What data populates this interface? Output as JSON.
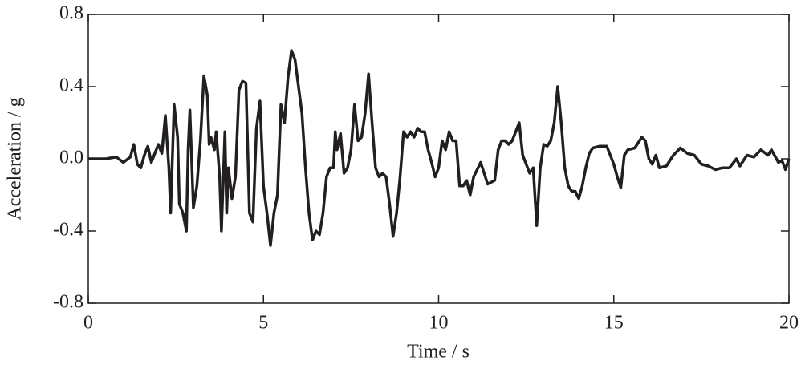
{
  "chart_data": {
    "type": "line",
    "xlabel": "Time / s",
    "ylabel": "Acceleration / g",
    "xlim": [
      0,
      20
    ],
    "xticks": [
      0,
      5,
      10,
      15,
      20
    ],
    "ylim": [
      -0.8,
      0.8
    ],
    "yticks": [
      0.8,
      0.4,
      {
        "value": 0,
        "label": "0.0"
      },
      -0.4,
      -0.8
    ],
    "grid": false,
    "x": [
      0,
      0.5,
      0.8,
      1.0,
      1.2,
      1.3,
      1.4,
      1.5,
      1.6,
      1.7,
      1.8,
      1.9,
      2.0,
      2.1,
      2.2,
      2.3,
      2.35,
      2.45,
      2.55,
      2.6,
      2.7,
      2.8,
      2.85,
      2.9,
      3.0,
      3.1,
      3.2,
      3.3,
      3.4,
      3.45,
      3.5,
      3.6,
      3.65,
      3.75,
      3.8,
      3.9,
      3.95,
      4.0,
      4.1,
      4.2,
      4.3,
      4.4,
      4.5,
      4.6,
      4.7,
      4.8,
      4.9,
      5.0,
      5.1,
      5.2,
      5.3,
      5.4,
      5.5,
      5.6,
      5.7,
      5.8,
      5.9,
      6.0,
      6.1,
      6.2,
      6.3,
      6.4,
      6.5,
      6.6,
      6.7,
      6.8,
      6.9,
      7.0,
      7.05,
      7.1,
      7.2,
      7.3,
      7.4,
      7.5,
      7.6,
      7.7,
      7.8,
      7.9,
      8.0,
      8.1,
      8.2,
      8.3,
      8.4,
      8.5,
      8.6,
      8.7,
      8.8,
      8.9,
      9.0,
      9.1,
      9.2,
      9.3,
      9.4,
      9.5,
      9.6,
      9.7,
      9.8,
      9.9,
      10.0,
      10.1,
      10.2,
      10.3,
      10.4,
      10.5,
      10.6,
      10.7,
      10.8,
      10.9,
      11.0,
      11.2,
      11.3,
      11.4,
      11.6,
      11.7,
      11.8,
      11.9,
      12.0,
      12.1,
      12.2,
      12.3,
      12.4,
      12.5,
      12.6,
      12.7,
      12.8,
      12.9,
      13.0,
      13.1,
      13.2,
      13.3,
      13.4,
      13.5,
      13.6,
      13.7,
      13.8,
      13.9,
      14.0,
      14.1,
      14.2,
      14.3,
      14.4,
      14.6,
      14.8,
      14.9,
      15.0,
      15.1,
      15.2,
      15.3,
      15.4,
      15.6,
      15.8,
      15.9,
      16.0,
      16.1,
      16.2,
      16.3,
      16.5,
      16.7,
      16.9,
      17.1,
      17.3,
      17.5,
      17.7,
      17.9,
      18.1,
      18.3,
      18.5,
      18.6,
      18.8,
      19.0,
      19.2,
      19.4,
      19.5,
      19.7,
      19.8,
      19.9,
      20.0
    ],
    "series": [
      {
        "color": "#231f20",
        "values": [
          0,
          0,
          0.01,
          -0.02,
          0.01,
          0.08,
          -0.03,
          -0.05,
          0.02,
          0.07,
          -0.02,
          0.03,
          0.08,
          0.03,
          0.24,
          -0.05,
          -0.3,
          0.3,
          0.12,
          -0.25,
          -0.3,
          -0.4,
          0.05,
          0.27,
          -0.27,
          -0.15,
          0.1,
          0.46,
          0.35,
          0.08,
          0.12,
          0.05,
          0.15,
          -0.1,
          -0.4,
          0.15,
          -0.3,
          -0.05,
          -0.22,
          -0.1,
          0.38,
          0.43,
          0.42,
          -0.3,
          -0.35,
          0.17,
          0.32,
          -0.15,
          -0.3,
          -0.48,
          -0.3,
          -0.2,
          0.3,
          0.2,
          0.45,
          0.6,
          0.55,
          0.4,
          0.25,
          -0.05,
          -0.3,
          -0.45,
          -0.4,
          -0.42,
          -0.3,
          -0.1,
          -0.05,
          -0.05,
          0.15,
          0.05,
          0.14,
          -0.08,
          -0.05,
          0.05,
          0.3,
          0.1,
          0.12,
          0.25,
          0.47,
          0.2,
          -0.05,
          -0.1,
          -0.08,
          -0.1,
          -0.25,
          -0.43,
          -0.3,
          -0.1,
          0.15,
          0.12,
          0.15,
          0.12,
          0.17,
          0.15,
          0.15,
          0.05,
          -0.02,
          -0.1,
          -0.05,
          0.1,
          0.05,
          0.15,
          0.1,
          0.1,
          -0.15,
          -0.15,
          -0.12,
          -0.2,
          -0.1,
          -0.02,
          -0.08,
          -0.14,
          -0.12,
          0.05,
          0.1,
          0.1,
          0.08,
          0.1,
          0.15,
          0.2,
          0.02,
          -0.03,
          -0.08,
          -0.05,
          -0.37,
          -0.05,
          0.08,
          0.07,
          0.1,
          0.2,
          0.4,
          0.2,
          -0.05,
          -0.15,
          -0.18,
          -0.18,
          -0.22,
          -0.15,
          -0.05,
          0.03,
          0.06,
          0.07,
          0.07,
          0.02,
          -0.03,
          -0.1,
          -0.16,
          0.02,
          0.05,
          0.06,
          0.12,
          0.1,
          0,
          -0.03,
          0.02,
          -0.05,
          -0.04,
          0.02,
          0.06,
          0.03,
          0.02,
          -0.03,
          -0.04,
          -0.06,
          -0.05,
          -0.05,
          0,
          -0.04,
          0.02,
          0.01,
          0.05,
          0.02,
          0.05,
          -0.02,
          -0.01,
          -0.06,
          0
        ]
      }
    ]
  }
}
